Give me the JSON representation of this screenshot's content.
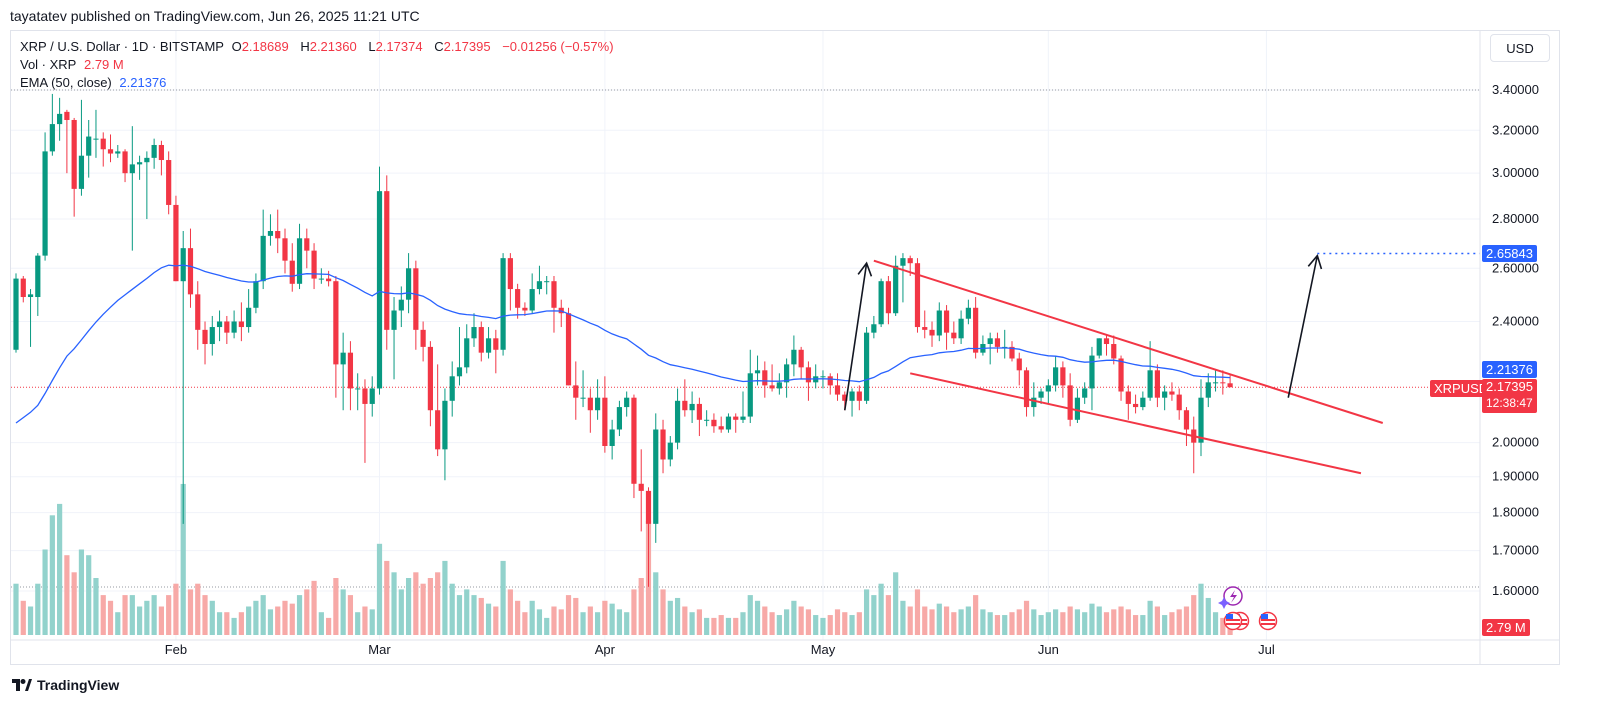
{
  "publisher": "tayatatev published on TradingView.com, Jun 26, 2025 11:21 UTC",
  "legend": {
    "symbol": "XRP / U.S. Dollar · 1D · BITSTAMP",
    "o_label": "O",
    "o": "2.18689",
    "h_label": "H",
    "h": "2.21360",
    "l_label": "L",
    "l": "2.17374",
    "c_label": "C",
    "c": "2.17395",
    "change": "−0.01256 (−0.57%)",
    "vol_label": "Vol · XRP",
    "vol": "2.79 M",
    "ema_label": "EMA (50, close)",
    "ema": "2.21376"
  },
  "currency_button": "USD",
  "price_labels": {
    "target": "2.65843",
    "ema": "2.21376",
    "symbol_tag": "XRPUSD",
    "last": "2.17395",
    "countdown": "12:38:47",
    "volume": "2.79 M"
  },
  "footer_logo": "TradingView",
  "colors": {
    "up": "#089981",
    "down": "#f23645",
    "vol_up": "#92d2cc",
    "vol_down": "#f7a9a7",
    "ema": "#2962ff",
    "trendline": "#f23645",
    "arrow": "#131722",
    "target_line": "#2962ff"
  },
  "chart_data": {
    "type": "candlestick",
    "interval": "1D",
    "y_scale": "log",
    "grid": true,
    "y_ticks": [
      "3.40000",
      "3.20000",
      "3.00000",
      "2.80000",
      "2.60000",
      "2.40000",
      "2.00000",
      "1.90000",
      "1.80000",
      "1.70000",
      "1.60000"
    ],
    "x_ticks": [
      {
        "label": "Feb",
        "date": "2025-02-01"
      },
      {
        "label": "Mar",
        "date": "2025-03-01"
      },
      {
        "label": "Apr",
        "date": "2025-04-01"
      },
      {
        "label": "May",
        "date": "2025-05-01"
      },
      {
        "label": "Jun",
        "date": "2025-06-01"
      },
      {
        "label": "Jul",
        "date": "2025-07-01"
      }
    ],
    "first_date": "2025-01-10",
    "ema50_first_value": 2.06,
    "ohlcv_columns": [
      "open",
      "high",
      "low",
      "close",
      "volume_millions"
    ],
    "ohlcv": [
      [
        2.3,
        2.58,
        2.29,
        2.56,
        18
      ],
      [
        2.56,
        2.57,
        2.47,
        2.49,
        12
      ],
      [
        2.49,
        2.52,
        2.31,
        2.5,
        10
      ],
      [
        2.49,
        2.66,
        2.42,
        2.65,
        18
      ],
      [
        2.65,
        3.19,
        2.63,
        3.1,
        30
      ],
      [
        3.1,
        3.38,
        3.08,
        3.23,
        42
      ],
      [
        3.23,
        3.36,
        3.15,
        3.28,
        46
      ],
      [
        3.29,
        3.3,
        3.0,
        3.25,
        28
      ],
      [
        3.25,
        3.26,
        2.81,
        2.93,
        22
      ],
      [
        2.93,
        3.35,
        2.9,
        3.08,
        30
      ],
      [
        3.08,
        3.25,
        2.98,
        3.17,
        28
      ],
      [
        3.16,
        3.3,
        3.07,
        3.16,
        20
      ],
      [
        3.16,
        3.19,
        3.03,
        3.11,
        14
      ],
      [
        3.11,
        3.18,
        3.05,
        3.09,
        12
      ],
      [
        3.09,
        3.13,
        3.07,
        3.1,
        8
      ],
      [
        3.1,
        3.11,
        2.96,
        3.0,
        14
      ],
      [
        3.0,
        3.22,
        2.67,
        3.04,
        14
      ],
      [
        3.04,
        3.08,
        2.97,
        3.05,
        10
      ],
      [
        3.05,
        3.1,
        2.8,
        3.07,
        12
      ],
      [
        3.07,
        3.16,
        3.02,
        3.13,
        14
      ],
      [
        3.13,
        3.15,
        2.99,
        3.06,
        10
      ],
      [
        3.06,
        3.1,
        2.82,
        2.86,
        14
      ],
      [
        2.86,
        2.9,
        2.55,
        2.55,
        18
      ],
      [
        2.55,
        2.75,
        1.77,
        2.68,
        53
      ],
      [
        2.68,
        2.76,
        2.45,
        2.5,
        16
      ],
      [
        2.5,
        2.55,
        2.3,
        2.37,
        18
      ],
      [
        2.37,
        2.4,
        2.25,
        2.32,
        14
      ],
      [
        2.32,
        2.42,
        2.28,
        2.38,
        12
      ],
      [
        2.38,
        2.44,
        2.33,
        2.4,
        8
      ],
      [
        2.4,
        2.42,
        2.32,
        2.36,
        8
      ],
      [
        2.36,
        2.44,
        2.34,
        2.4,
        6
      ],
      [
        2.4,
        2.47,
        2.33,
        2.38,
        8
      ],
      [
        2.38,
        2.52,
        2.36,
        2.45,
        10
      ],
      [
        2.45,
        2.58,
        2.43,
        2.55,
        12
      ],
      [
        2.55,
        2.84,
        2.52,
        2.73,
        14
      ],
      [
        2.73,
        2.82,
        2.69,
        2.75,
        9
      ],
      [
        2.75,
        2.84,
        2.66,
        2.72,
        10
      ],
      [
        2.72,
        2.76,
        2.58,
        2.63,
        12
      ],
      [
        2.63,
        2.7,
        2.51,
        2.54,
        11
      ],
      [
        2.54,
        2.78,
        2.52,
        2.72,
        14
      ],
      [
        2.72,
        2.76,
        2.6,
        2.67,
        16
      ],
      [
        2.67,
        2.7,
        2.52,
        2.56,
        19
      ],
      [
        2.56,
        2.6,
        2.54,
        2.56,
        8
      ],
      [
        2.56,
        2.59,
        2.53,
        2.55,
        6
      ],
      [
        2.55,
        2.57,
        2.14,
        2.25,
        20
      ],
      [
        2.25,
        2.36,
        2.1,
        2.29,
        16
      ],
      [
        2.29,
        2.33,
        2.1,
        2.17,
        14
      ],
      [
        2.17,
        2.22,
        2.1,
        2.17,
        8
      ],
      [
        2.17,
        2.2,
        1.94,
        2.12,
        10
      ],
      [
        2.12,
        2.21,
        2.08,
        2.17,
        9
      ],
      [
        2.17,
        3.03,
        2.15,
        2.92,
        32
      ],
      [
        2.92,
        2.99,
        2.3,
        2.37,
        26
      ],
      [
        2.37,
        2.49,
        2.2,
        2.44,
        22
      ],
      [
        2.44,
        2.53,
        2.38,
        2.48,
        16
      ],
      [
        2.48,
        2.66,
        2.43,
        2.6,
        20
      ],
      [
        2.6,
        2.63,
        2.3,
        2.37,
        22
      ],
      [
        2.37,
        2.4,
        2.26,
        2.31,
        18
      ],
      [
        2.31,
        2.33,
        2.05,
        2.1,
        20
      ],
      [
        2.1,
        2.25,
        1.96,
        1.98,
        22
      ],
      [
        1.98,
        2.17,
        1.89,
        2.13,
        26
      ],
      [
        2.13,
        2.26,
        2.08,
        2.21,
        18
      ],
      [
        2.21,
        2.38,
        2.18,
        2.24,
        14
      ],
      [
        2.24,
        2.39,
        2.22,
        2.34,
        16
      ],
      [
        2.34,
        2.43,
        2.31,
        2.38,
        14
      ],
      [
        2.38,
        2.4,
        2.26,
        2.29,
        13
      ],
      [
        2.29,
        2.38,
        2.27,
        2.34,
        11
      ],
      [
        2.34,
        2.37,
        2.22,
        2.3,
        10
      ],
      [
        2.3,
        2.66,
        2.28,
        2.64,
        26
      ],
      [
        2.64,
        2.66,
        2.44,
        2.52,
        16
      ],
      [
        2.52,
        2.54,
        2.41,
        2.45,
        12
      ],
      [
        2.45,
        2.47,
        2.42,
        2.44,
        8
      ],
      [
        2.44,
        2.58,
        2.43,
        2.52,
        12
      ],
      [
        2.52,
        2.61,
        2.5,
        2.55,
        9
      ],
      [
        2.55,
        2.57,
        2.5,
        2.55,
        6
      ],
      [
        2.55,
        2.57,
        2.36,
        2.45,
        10
      ],
      [
        2.45,
        2.48,
        2.38,
        2.43,
        9
      ],
      [
        2.43,
        2.45,
        2.18,
        2.18,
        14
      ],
      [
        2.18,
        2.26,
        2.07,
        2.14,
        13
      ],
      [
        2.14,
        2.23,
        2.11,
        2.14,
        8
      ],
      [
        2.14,
        2.17,
        2.03,
        2.1,
        10
      ],
      [
        2.1,
        2.2,
        2.07,
        2.14,
        8
      ],
      [
        2.14,
        2.21,
        1.97,
        1.99,
        12
      ],
      [
        1.99,
        2.07,
        1.95,
        2.04,
        11
      ],
      [
        2.04,
        2.13,
        2.02,
        2.11,
        9
      ],
      [
        2.11,
        2.16,
        2.08,
        2.14,
        8
      ],
      [
        2.14,
        2.15,
        1.84,
        1.88,
        16
      ],
      [
        1.88,
        1.98,
        1.75,
        1.86,
        20
      ],
      [
        1.86,
        1.87,
        1.61,
        1.77,
        40
      ],
      [
        1.77,
        2.09,
        1.72,
        2.04,
        22
      ],
      [
        2.04,
        2.07,
        1.91,
        1.95,
        16
      ],
      [
        1.95,
        2.02,
        1.93,
        2.0,
        12
      ],
      [
        2.0,
        2.17,
        1.98,
        2.13,
        13
      ],
      [
        2.13,
        2.2,
        2.08,
        2.1,
        10
      ],
      [
        2.1,
        2.16,
        2.06,
        2.12,
        8
      ],
      [
        2.12,
        2.14,
        2.02,
        2.07,
        9
      ],
      [
        2.07,
        2.1,
        2.05,
        2.07,
        6
      ],
      [
        2.07,
        2.09,
        2.03,
        2.05,
        6
      ],
      [
        2.05,
        2.08,
        2.03,
        2.04,
        7
      ],
      [
        2.04,
        2.09,
        2.03,
        2.08,
        6
      ],
      [
        2.08,
        2.09,
        2.03,
        2.07,
        6
      ],
      [
        2.07,
        2.16,
        2.06,
        2.08,
        8
      ],
      [
        2.08,
        2.3,
        2.06,
        2.22,
        14
      ],
      [
        2.22,
        2.28,
        2.18,
        2.23,
        12
      ],
      [
        2.23,
        2.26,
        2.14,
        2.18,
        10
      ],
      [
        2.18,
        2.25,
        2.16,
        2.17,
        8
      ],
      [
        2.17,
        2.22,
        2.15,
        2.19,
        7
      ],
      [
        2.19,
        2.27,
        2.14,
        2.25,
        9
      ],
      [
        2.25,
        2.35,
        2.21,
        2.3,
        12
      ],
      [
        2.3,
        2.31,
        2.2,
        2.24,
        10
      ],
      [
        2.24,
        2.26,
        2.13,
        2.19,
        9
      ],
      [
        2.19,
        2.25,
        2.17,
        2.21,
        7
      ],
      [
        2.21,
        2.23,
        2.17,
        2.21,
        6
      ],
      [
        2.21,
        2.22,
        2.15,
        2.18,
        7
      ],
      [
        2.18,
        2.22,
        2.13,
        2.15,
        9
      ],
      [
        2.15,
        2.16,
        2.1,
        2.13,
        8
      ],
      [
        2.13,
        2.17,
        2.08,
        2.16,
        7
      ],
      [
        2.16,
        2.18,
        2.1,
        2.13,
        8
      ],
      [
        2.13,
        2.38,
        2.12,
        2.36,
        16
      ],
      [
        2.36,
        2.42,
        2.34,
        2.39,
        14
      ],
      [
        2.39,
        2.56,
        2.38,
        2.55,
        18
      ],
      [
        2.55,
        2.57,
        2.39,
        2.43,
        14
      ],
      [
        2.43,
        2.65,
        2.42,
        2.61,
        22
      ],
      [
        2.61,
        2.66,
        2.47,
        2.64,
        12
      ],
      [
        2.64,
        2.65,
        2.57,
        2.62,
        10
      ],
      [
        2.62,
        2.64,
        2.36,
        2.38,
        16
      ],
      [
        2.38,
        2.44,
        2.34,
        2.37,
        10
      ],
      [
        2.37,
        2.4,
        2.31,
        2.35,
        9
      ],
      [
        2.35,
        2.47,
        2.33,
        2.44,
        11
      ],
      [
        2.44,
        2.46,
        2.3,
        2.36,
        10
      ],
      [
        2.36,
        2.4,
        2.32,
        2.34,
        8
      ],
      [
        2.34,
        2.44,
        2.32,
        2.41,
        9
      ],
      [
        2.41,
        2.48,
        2.39,
        2.45,
        10
      ],
      [
        2.45,
        2.49,
        2.27,
        2.29,
        14
      ],
      [
        2.29,
        2.35,
        2.28,
        2.32,
        9
      ],
      [
        2.32,
        2.36,
        2.25,
        2.34,
        8
      ],
      [
        2.34,
        2.36,
        2.29,
        2.31,
        7
      ],
      [
        2.31,
        2.37,
        2.27,
        2.31,
        7
      ],
      [
        2.31,
        2.33,
        2.26,
        2.27,
        8
      ],
      [
        2.27,
        2.29,
        2.18,
        2.23,
        9
      ],
      [
        2.23,
        2.24,
        2.08,
        2.11,
        12
      ],
      [
        2.11,
        2.19,
        2.08,
        2.14,
        9
      ],
      [
        2.14,
        2.17,
        2.12,
        2.16,
        7
      ],
      [
        2.16,
        2.2,
        2.12,
        2.18,
        8
      ],
      [
        2.18,
        2.28,
        2.16,
        2.24,
        9
      ],
      [
        2.24,
        2.26,
        2.14,
        2.18,
        8
      ],
      [
        2.18,
        2.22,
        2.05,
        2.07,
        10
      ],
      [
        2.07,
        2.17,
        2.06,
        2.14,
        9
      ],
      [
        2.14,
        2.19,
        2.12,
        2.17,
        8
      ],
      [
        2.17,
        2.31,
        2.1,
        2.28,
        11
      ],
      [
        2.28,
        2.34,
        2.27,
        2.34,
        10
      ],
      [
        2.34,
        2.35,
        2.28,
        2.32,
        8
      ],
      [
        2.32,
        2.35,
        2.25,
        2.27,
        9
      ],
      [
        2.27,
        2.28,
        2.13,
        2.16,
        10
      ],
      [
        2.16,
        2.18,
        2.07,
        2.12,
        9
      ],
      [
        2.12,
        2.15,
        2.09,
        2.11,
        7
      ],
      [
        2.11,
        2.16,
        2.1,
        2.14,
        7
      ],
      [
        2.14,
        2.33,
        2.13,
        2.23,
        12
      ],
      [
        2.23,
        2.25,
        2.11,
        2.14,
        10
      ],
      [
        2.14,
        2.18,
        2.1,
        2.16,
        7
      ],
      [
        2.16,
        2.19,
        2.13,
        2.15,
        8
      ],
      [
        2.15,
        2.17,
        2.07,
        2.1,
        9
      ],
      [
        2.1,
        2.11,
        1.99,
        2.04,
        10
      ],
      [
        2.04,
        2.08,
        1.91,
        2.0,
        14
      ],
      [
        2.0,
        2.2,
        1.96,
        2.14,
        18
      ],
      [
        2.14,
        2.22,
        2.11,
        2.19,
        13
      ],
      [
        2.19,
        2.23,
        2.16,
        2.19,
        8
      ],
      [
        2.19,
        2.23,
        2.15,
        2.187,
        6
      ],
      [
        2.18689,
        2.2136,
        2.17374,
        2.17395,
        2.79
      ]
    ],
    "last_price": 2.17395,
    "annotations": {
      "upper_trendline": [
        {
          "date": "2025-05-08",
          "price": 2.63
        },
        {
          "date": "2025-07-17",
          "price": 2.06
        }
      ],
      "lower_trendline": [
        {
          "date": "2025-05-13",
          "price": 2.22
        },
        {
          "date": "2025-07-14",
          "price": 1.91
        }
      ],
      "arrow_1": [
        {
          "date": "2025-05-04",
          "price": 2.1
        },
        {
          "date": "2025-05-07",
          "price": 2.62
        }
      ],
      "arrow_2": [
        {
          "date": "2025-07-04",
          "price": 2.14
        },
        {
          "date": "2025-07-08",
          "price": 2.65
        }
      ],
      "target_line": {
        "from_date": "2025-07-08",
        "price": 2.65843
      }
    }
  }
}
